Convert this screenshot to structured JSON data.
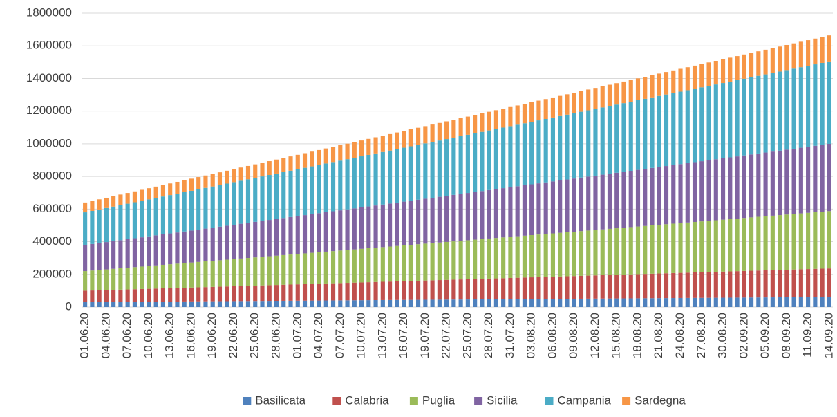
{
  "chart_data": {
    "type": "stacked_bar",
    "categories": [
      "01.06.20",
      null,
      null,
      "04.06.20",
      null,
      null,
      "07.06.20",
      null,
      null,
      "10.06.20",
      null,
      null,
      "13.06.20",
      null,
      null,
      "16.06.20",
      null,
      null,
      "19.06.20",
      null,
      null,
      "22.06.20",
      null,
      null,
      "25.06.20",
      null,
      null,
      "28.06.20",
      null,
      null,
      "01.07.20",
      null,
      null,
      "04.07.20",
      null,
      null,
      "07.07.20",
      null,
      null,
      "10.07.20",
      null,
      null,
      "13.07.20",
      null,
      null,
      "16.07.20",
      null,
      null,
      "19.07.20",
      null,
      null,
      "22.07.20",
      null,
      null,
      "25.07.20",
      null,
      null,
      "28.07.20",
      null,
      null,
      "31.07.20",
      null,
      null,
      "03.08.20",
      null,
      null,
      "06.08.20",
      null,
      null,
      "09.08.20",
      null,
      null,
      "12.08.20",
      null,
      null,
      "15.08.20",
      null,
      null,
      "18.08.20",
      null,
      null,
      "21.08.20",
      null,
      null,
      "24.08.20",
      null,
      null,
      "27.08.20",
      null,
      null,
      "30.08.20",
      null,
      null,
      "02.09.20",
      null,
      null,
      "05.09.20",
      null,
      null,
      "08.09.20",
      null,
      null,
      "11.09.20",
      null,
      null,
      "14.09.20"
    ],
    "series": [
      {
        "name": "Basilicata",
        "color": "#4f81bd",
        "values": [
          30000,
          30300,
          30600,
          30900,
          31200,
          31500,
          31800,
          32100,
          32400,
          32700,
          33000,
          33300,
          33600,
          33900,
          34200,
          34500,
          34800,
          35100,
          35400,
          35700,
          36000,
          36300,
          36600,
          36900,
          37200,
          37500,
          37800,
          38100,
          38400,
          38700,
          39000,
          39300,
          39600,
          39900,
          40200,
          40500,
          40800,
          41100,
          41400,
          41700,
          42000,
          42300,
          42600,
          42900,
          43200,
          43500,
          43800,
          44100,
          44400,
          44700,
          45000,
          45300,
          45600,
          45900,
          46200,
          46500,
          46800,
          47100,
          47400,
          47700,
          48000,
          48300,
          48600,
          48900,
          49200,
          49500,
          49800,
          50100,
          50400,
          50700,
          51000,
          51300,
          51600,
          51900,
          52200,
          52500,
          52800,
          53100,
          53400,
          53700,
          54000,
          54300,
          54600,
          54900,
          55200,
          55500,
          55800,
          56100,
          56400,
          56700,
          57000,
          57300,
          57600,
          57900,
          58200,
          58500,
          58800,
          59100,
          59400,
          59700,
          60000,
          60300,
          60600,
          60900,
          61200,
          61500
        ]
      },
      {
        "name": "Calabria",
        "color": "#c0504d",
        "values": [
          70000,
          71000,
          72000,
          73000,
          74000,
          75000,
          76000,
          77000,
          78000,
          79000,
          80000,
          81000,
          82000,
          83000,
          84000,
          85000,
          86000,
          87000,
          88000,
          89000,
          90000,
          91000,
          92000,
          93000,
          94000,
          95000,
          96000,
          97000,
          98000,
          99000,
          100000,
          101000,
          102000,
          103000,
          104000,
          105000,
          106000,
          107000,
          108000,
          109000,
          110000,
          111000,
          112000,
          113000,
          114000,
          115000,
          116000,
          117000,
          118000,
          119000,
          120000,
          121000,
          122000,
          123000,
          124000,
          125000,
          126000,
          127000,
          128000,
          129000,
          130000,
          131000,
          132000,
          133000,
          134000,
          135000,
          136000,
          137000,
          138000,
          139000,
          140000,
          141000,
          142000,
          143000,
          144000,
          145000,
          146000,
          147000,
          148000,
          149000,
          150000,
          151000,
          152000,
          153000,
          154000,
          155000,
          156000,
          157000,
          158000,
          159000,
          160000,
          161000,
          162000,
          163000,
          164000,
          165000,
          166000,
          167000,
          168000,
          169000,
          170000,
          171000,
          172000,
          173000,
          174000,
          175000
        ]
      },
      {
        "name": "Puglia",
        "color": "#9bbb59",
        "values": [
          120000,
          122200,
          124400,
          126600,
          128800,
          131000,
          133200,
          135400,
          137600,
          139800,
          142000,
          144200,
          146400,
          148600,
          150800,
          153000,
          155200,
          157400,
          159600,
          161800,
          164000,
          166200,
          168400,
          170600,
          172800,
          175000,
          177200,
          179400,
          181600,
          183800,
          186000,
          188200,
          190400,
          192600,
          194800,
          197000,
          199200,
          201400,
          203600,
          205800,
          208000,
          210200,
          212400,
          214600,
          216800,
          219000,
          221200,
          223400,
          225600,
          227800,
          230000,
          232200,
          234400,
          236600,
          238800,
          241000,
          243200,
          245400,
          247600,
          249800,
          252000,
          254200,
          256400,
          258600,
          260800,
          263000,
          265200,
          267400,
          269600,
          271800,
          274000,
          276200,
          278400,
          280600,
          282800,
          285000,
          287200,
          289400,
          291600,
          293800,
          296000,
          298200,
          300400,
          302600,
          304800,
          307000,
          309200,
          311400,
          313600,
          315800,
          318000,
          320200,
          322400,
          324600,
          326800,
          329000,
          331200,
          333400,
          335600,
          337800,
          340000,
          342200,
          344400,
          346600,
          348800,
          351000
        ]
      },
      {
        "name": "Sicilia",
        "color": "#8064a2",
        "values": [
          160000,
          162400,
          164800,
          167200,
          169600,
          172000,
          174400,
          176800,
          179200,
          181600,
          184000,
          186400,
          188800,
          191200,
          193600,
          196000,
          198400,
          200800,
          203200,
          205600,
          208000,
          210400,
          212800,
          215200,
          217600,
          220000,
          222400,
          224800,
          227200,
          229600,
          232000,
          234400,
          236800,
          239200,
          241600,
          244000,
          246400,
          248800,
          251200,
          253600,
          256000,
          258400,
          260800,
          263200,
          265600,
          268000,
          270400,
          272800,
          275200,
          277600,
          280000,
          282400,
          284800,
          287200,
          289600,
          292000,
          294400,
          296800,
          299200,
          301600,
          304000,
          306400,
          308800,
          311200,
          313600,
          316000,
          318400,
          320800,
          323200,
          325600,
          328000,
          330400,
          332800,
          335200,
          337600,
          340000,
          342400,
          344800,
          347200,
          349600,
          352000,
          354400,
          356800,
          359200,
          361600,
          364000,
          366400,
          368800,
          371200,
          373600,
          376000,
          378400,
          380800,
          383200,
          385600,
          388000,
          390400,
          392800,
          395200,
          397600,
          400000,
          402400,
          404800,
          407200,
          409600,
          412000
        ]
      },
      {
        "name": "Campania",
        "color": "#4bacc6",
        "values": [
          200000,
          202900,
          205800,
          208700,
          211600,
          214500,
          217400,
          220300,
          223200,
          226100,
          229000,
          231900,
          234800,
          237700,
          240600,
          243500,
          246400,
          249300,
          252200,
          255100,
          258000,
          260900,
          263800,
          266700,
          269600,
          272500,
          275400,
          278300,
          281200,
          284100,
          287000,
          289900,
          292800,
          295700,
          298600,
          301500,
          304400,
          307300,
          310200,
          313100,
          316000,
          318900,
          321800,
          324700,
          327600,
          330500,
          333400,
          336300,
          339200,
          342100,
          345000,
          347900,
          350800,
          353700,
          356600,
          359500,
          362400,
          365300,
          368200,
          371100,
          374000,
          376900,
          379800,
          382700,
          385600,
          388500,
          391400,
          394300,
          397200,
          400100,
          403000,
          405900,
          408800,
          411700,
          414600,
          417500,
          420400,
          423300,
          426200,
          429100,
          432000,
          434900,
          437800,
          440700,
          443600,
          446500,
          449400,
          452300,
          455200,
          458100,
          461000,
          463900,
          466800,
          469700,
          472600,
          475500,
          478400,
          481300,
          484200,
          487100,
          490000,
          492900,
          495800,
          498700,
          501600,
          504500
        ]
      },
      {
        "name": "Sardegna",
        "color": "#f79646",
        "values": [
          60000,
          60950,
          61900,
          62850,
          63800,
          64750,
          65700,
          66650,
          67600,
          68550,
          69500,
          70450,
          71400,
          72350,
          73300,
          74250,
          75200,
          76150,
          77100,
          78050,
          79000,
          79950,
          80900,
          81850,
          82800,
          83750,
          84700,
          85650,
          86600,
          87550,
          88500,
          89450,
          90400,
          91350,
          92300,
          93250,
          94200,
          95150,
          96100,
          97050,
          98000,
          98950,
          99900,
          100850,
          101800,
          102750,
          103700,
          104650,
          105600,
          106550,
          107500,
          108450,
          109400,
          110350,
          111300,
          112250,
          113200,
          114150,
          115100,
          116050,
          117000,
          117950,
          118900,
          119850,
          120800,
          121750,
          122700,
          123650,
          124600,
          125550,
          126500,
          127450,
          128400,
          129350,
          130300,
          131250,
          132200,
          133150,
          134100,
          135050,
          136000,
          136950,
          137900,
          138850,
          139800,
          140750,
          141700,
          142650,
          143600,
          144550,
          145500,
          146450,
          147400,
          148350,
          149300,
          150250,
          151200,
          152150,
          153100,
          154050,
          155000,
          155950,
          156900,
          157850,
          158800,
          159750
        ]
      }
    ],
    "ylim": [
      0,
      1800000
    ],
    "yticks": [
      0,
      200000,
      400000,
      600000,
      800000,
      1000000,
      1200000,
      1400000,
      1600000,
      1800000
    ],
    "grid": true,
    "legend": "bottom"
  }
}
